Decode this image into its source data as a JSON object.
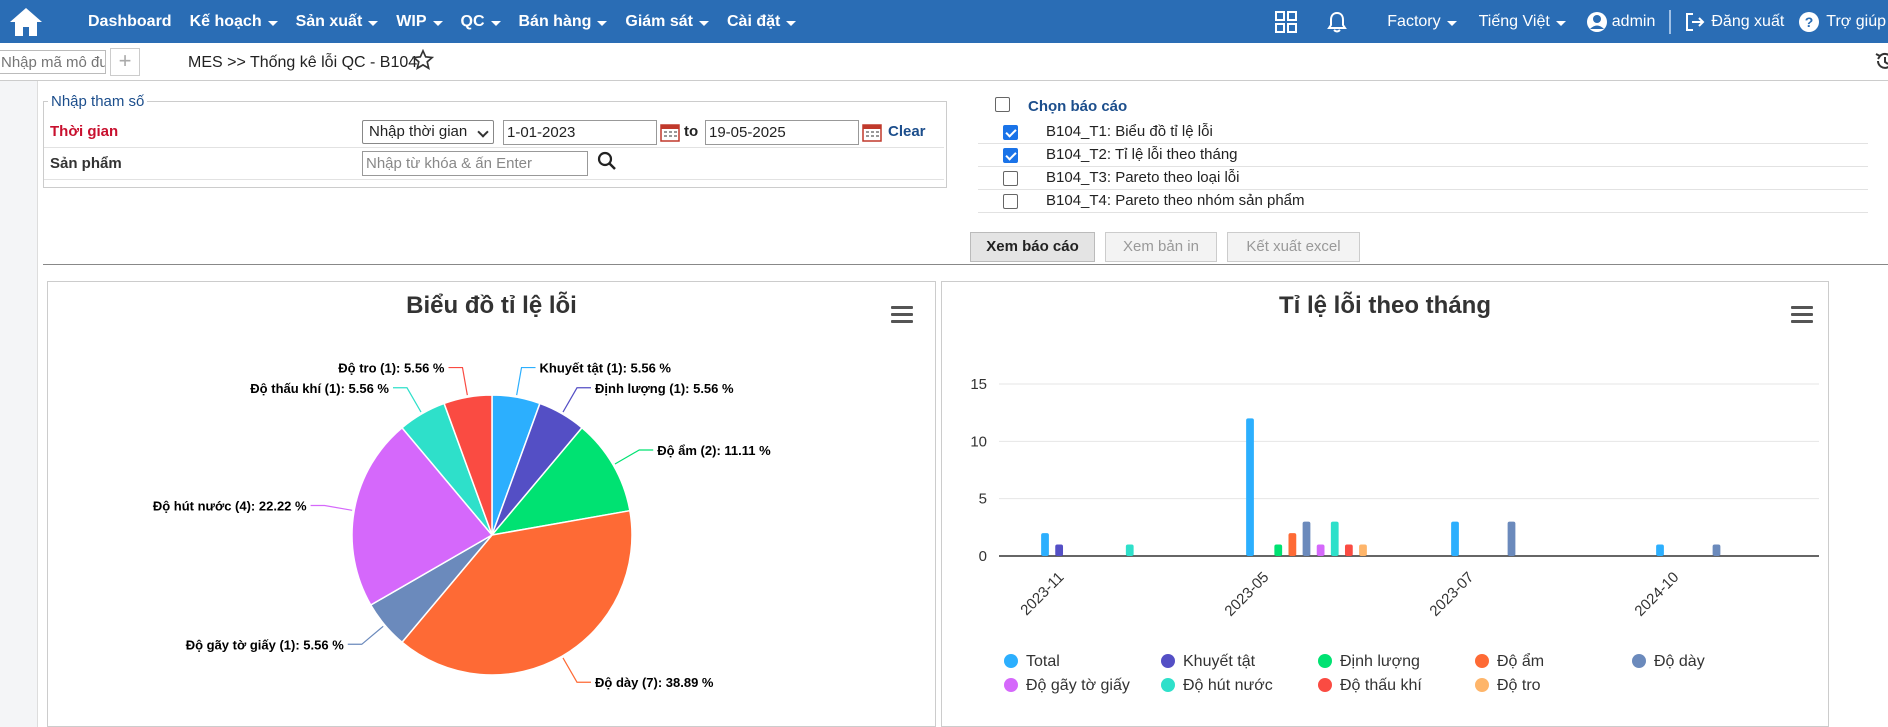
{
  "nav": {
    "items": [
      "Dashboard",
      "Kế hoạch",
      "Sản xuất",
      "WIP",
      "QC",
      "Bán hàng",
      "Giám sát",
      "Cài đặt"
    ],
    "factory": "Factory",
    "language": "Tiếng Việt",
    "user": "admin",
    "logout": "Đăng xuất",
    "help": "Trợ giúp"
  },
  "subbar": {
    "module_placeholder": "Nhập mã mô đun",
    "breadcrumb": "MES >> Thống kê lỗi QC - B104"
  },
  "params": {
    "legend": "Nhập tham số",
    "time_label": "Thời gian",
    "time_mode": "Nhập thời gian",
    "from_date": "1-01-2023",
    "to_label": "to",
    "to_date": "19-05-2025",
    "clear": "Clear",
    "product_label": "Sản phẩm",
    "product_placeholder": "Nhập từ khóa & ấn Enter"
  },
  "reports": {
    "title": "Chọn báo cáo",
    "items": [
      {
        "label": "B104_T1: Biểu đồ tỉ lệ lỗi",
        "checked": true
      },
      {
        "label": "B104_T2: Tỉ lệ lỗi theo tháng",
        "checked": true
      },
      {
        "label": "B104_T3: Pareto theo loại lỗi",
        "checked": false
      },
      {
        "label": "B104_T4: Pareto theo nhóm sản phẩm",
        "checked": false
      }
    ]
  },
  "buttons": {
    "view": "Xem báo cáo",
    "print": "Xem bản in",
    "excel": "Kết xuất excel"
  },
  "chart_data": [
    {
      "type": "pie",
      "title": "Biểu đồ tỉ lệ lỗi",
      "slices": [
        {
          "name": "Khuyết tật",
          "count": 1,
          "percent": 5.56,
          "label": "Khuyết tật (1): 5.56 %",
          "color": "#2caffe"
        },
        {
          "name": "Định lượng",
          "count": 1,
          "percent": 5.56,
          "label": "Định lượng (1): 5.56 %",
          "color": "#544fc5"
        },
        {
          "name": "Độ ẩm",
          "count": 2,
          "percent": 11.11,
          "label": "Độ ẩm (2): 11.11 %",
          "color": "#00e272"
        },
        {
          "name": "Độ dày",
          "count": 7,
          "percent": 38.89,
          "label": "Độ dày (7): 38.89 %",
          "color": "#fe6a35"
        },
        {
          "name": "Độ gãy tờ giấy",
          "count": 1,
          "percent": 5.56,
          "label": "Độ gãy tờ giấy (1): 5.56 %",
          "color": "#6b8abc"
        },
        {
          "name": "Độ hút nước",
          "count": 4,
          "percent": 22.22,
          "label": "Độ hút nước (4): 22.22 %",
          "color": "#d568fb"
        },
        {
          "name": "Độ thấu khí",
          "count": 1,
          "percent": 5.56,
          "label": "Độ thấu khí (1): 5.56 %",
          "color": "#2ee0ca"
        },
        {
          "name": "Độ tro",
          "count": 1,
          "percent": 5.56,
          "label": "Độ tro (1): 5.56 %",
          "color": "#fa4b42"
        }
      ]
    },
    {
      "type": "bar",
      "title": "Tỉ lệ lỗi theo tháng",
      "categories": [
        "2023-11",
        "2023-05",
        "2023-07",
        "2024-10"
      ],
      "y_ticks": [
        "0",
        "5",
        "10",
        "15"
      ],
      "ylim": [
        0,
        15
      ],
      "grid": true,
      "legend_position": "bottom",
      "series": [
        {
          "name": "Total",
          "color": "#2caffe",
          "values": [
            2,
            12,
            3,
            1
          ]
        },
        {
          "name": "Khuyết tật",
          "color": "#544fc5",
          "values": [
            1,
            0,
            0,
            0
          ]
        },
        {
          "name": "Định lượng",
          "color": "#00e272",
          "values": [
            0,
            1,
            0,
            0
          ]
        },
        {
          "name": "Độ ẩm",
          "color": "#fe6a35",
          "values": [
            0,
            2,
            0,
            0
          ]
        },
        {
          "name": "Độ dày",
          "color": "#6b8abc",
          "values": [
            0,
            3,
            3,
            1
          ]
        },
        {
          "name": "Độ gãy tờ giấy",
          "color": "#d568fb",
          "values": [
            0,
            1,
            0,
            0
          ]
        },
        {
          "name": "Độ hút nước",
          "color": "#2ee0ca",
          "values": [
            1,
            3,
            0,
            0
          ]
        },
        {
          "name": "Độ thấu khí",
          "color": "#fa4b42",
          "values": [
            0,
            1,
            0,
            0
          ]
        },
        {
          "name": "Độ tro",
          "color": "#feb56a",
          "values": [
            0,
            1,
            0,
            0
          ]
        }
      ]
    }
  ]
}
